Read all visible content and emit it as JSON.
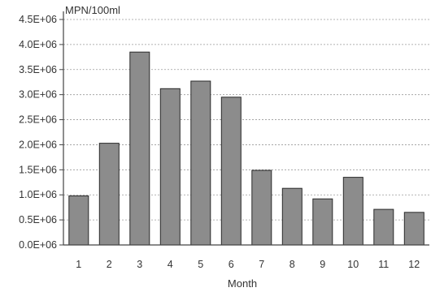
{
  "chart_data": {
    "type": "bar",
    "title": "",
    "ylabel": "MPN/100ml",
    "xlabel": "Month",
    "categories": [
      "1",
      "2",
      "3",
      "4",
      "5",
      "6",
      "7",
      "8",
      "9",
      "10",
      "11",
      "12"
    ],
    "values": [
      980000,
      2030000,
      3850000,
      3120000,
      3270000,
      2950000,
      1490000,
      1130000,
      920000,
      1350000,
      710000,
      650000
    ],
    "ylim": [
      0,
      4500000
    ],
    "yticks": [
      {
        "value": 0,
        "label": "0.0E+06"
      },
      {
        "value": 500000,
        "label": "0.5E+06"
      },
      {
        "value": 1000000,
        "label": "1.0E+06"
      },
      {
        "value": 1500000,
        "label": "1.5E+06"
      },
      {
        "value": 2000000,
        "label": "2.0E+06"
      },
      {
        "value": 2500000,
        "label": "2.5E+06"
      },
      {
        "value": 3000000,
        "label": "3.0E+06"
      },
      {
        "value": 3500000,
        "label": "3.5E+06"
      },
      {
        "value": 4000000,
        "label": "4.0E+06"
      },
      {
        "value": 4500000,
        "label": "4.5E+06"
      }
    ],
    "grid": "horizontal dashed",
    "colors": {
      "bar_fill": "#8c8c8c",
      "bar_edge": "#2a2a2a",
      "axis": "#444444",
      "grid": "#9a9a9a"
    }
  }
}
